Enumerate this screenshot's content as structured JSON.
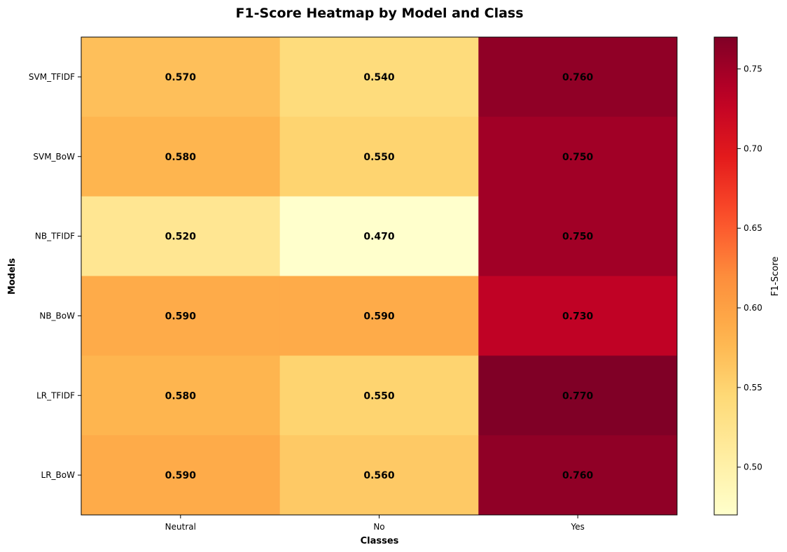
{
  "chart_data": {
    "type": "heatmap",
    "title": "F1-Score Heatmap by Model and Class",
    "xlabel": "Classes",
    "ylabel": "Models",
    "x_categories": [
      "Neutral",
      "No",
      "Yes"
    ],
    "y_categories": [
      "SVM_TFIDF",
      "SVM_BoW",
      "NB_TFIDF",
      "NB_BoW",
      "LR_TFIDF",
      "LR_BoW"
    ],
    "values": [
      [
        0.57,
        0.54,
        0.76
      ],
      [
        0.58,
        0.55,
        0.75
      ],
      [
        0.52,
        0.47,
        0.75
      ],
      [
        0.59,
        0.59,
        0.73
      ],
      [
        0.58,
        0.55,
        0.77
      ],
      [
        0.59,
        0.56,
        0.76
      ]
    ],
    "cell_labels": [
      [
        "0.570",
        "0.540",
        "0.760"
      ],
      [
        "0.580",
        "0.550",
        "0.750"
      ],
      [
        "0.520",
        "0.470",
        "0.750"
      ],
      [
        "0.590",
        "0.590",
        "0.730"
      ],
      [
        "0.580",
        "0.550",
        "0.770"
      ],
      [
        "0.590",
        "0.560",
        "0.760"
      ]
    ],
    "colormap": "YlOrRd",
    "vmin": 0.47,
    "vmax": 0.77,
    "colorbar": {
      "label": "F1-Score",
      "ticks": [
        0.5,
        0.55,
        0.6,
        0.65,
        0.7,
        0.75
      ],
      "tick_labels": [
        "0.50",
        "0.55",
        "0.60",
        "0.65",
        "0.70",
        "0.75"
      ]
    },
    "grid": false
  }
}
